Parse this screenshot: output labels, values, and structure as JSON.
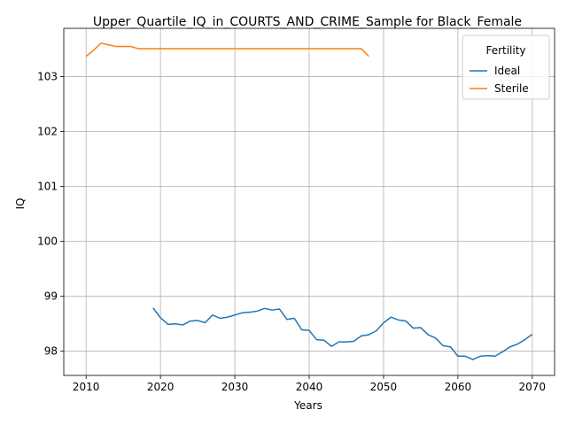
{
  "chart_data": {
    "type": "line",
    "title": "Upper_Quartile_IQ_in_COURTS_AND_CRIME_Sample for Black_Female",
    "xlabel": "Years",
    "ylabel": "IQ",
    "xlim": [
      2007,
      2073
    ],
    "ylim": [
      97.56,
      103.88
    ],
    "xticks": [
      2010,
      2020,
      2030,
      2040,
      2050,
      2060,
      2070
    ],
    "yticks": [
      98,
      99,
      100,
      101,
      102,
      103
    ],
    "grid": true,
    "legend": {
      "title": "Fertility",
      "position": "top-right"
    },
    "series": [
      {
        "name": "Ideal",
        "color": "#1f77b4",
        "x": [
          2019,
          2020,
          2021,
          2022,
          2023,
          2024,
          2025,
          2026,
          2027,
          2028,
          2029,
          2030,
          2031,
          2032,
          2033,
          2034,
          2035,
          2036,
          2037,
          2038,
          2039,
          2040,
          2041,
          2042,
          2043,
          2044,
          2045,
          2046,
          2047,
          2048,
          2049,
          2050,
          2051,
          2052,
          2053,
          2054,
          2055,
          2056,
          2057,
          2058,
          2059,
          2060,
          2061,
          2062,
          2063,
          2064,
          2065,
          2066,
          2067,
          2068,
          2069,
          2070
        ],
        "y": [
          98.79,
          98.61,
          98.49,
          98.5,
          98.48,
          98.55,
          98.56,
          98.52,
          98.66,
          98.6,
          98.62,
          98.66,
          98.7,
          98.71,
          98.73,
          98.78,
          98.75,
          98.77,
          98.58,
          98.6,
          98.39,
          98.38,
          98.21,
          98.2,
          98.09,
          98.17,
          98.17,
          98.18,
          98.28,
          98.3,
          98.37,
          98.52,
          98.62,
          98.57,
          98.55,
          98.42,
          98.43,
          98.3,
          98.24,
          98.1,
          98.08,
          97.91,
          97.91,
          97.85,
          97.91,
          97.92,
          97.91,
          97.99,
          98.08,
          98.13,
          98.21,
          98.31
        ]
      },
      {
        "name": "Sterile",
        "color": "#ff7f0e",
        "x": [
          2010,
          2011,
          2012,
          2013,
          2014,
          2015,
          2016,
          2017,
          2018,
          2019,
          2020,
          2021,
          2022,
          2023,
          2024,
          2025,
          2026,
          2027,
          2028,
          2029,
          2030,
          2031,
          2032,
          2033,
          2034,
          2035,
          2036,
          2037,
          2038,
          2039,
          2040,
          2041,
          2042,
          2043,
          2044,
          2045,
          2046,
          2047,
          2048
        ],
        "y": [
          103.37,
          103.48,
          103.61,
          103.58,
          103.55,
          103.55,
          103.55,
          103.51,
          103.51,
          103.51,
          103.51,
          103.51,
          103.51,
          103.51,
          103.51,
          103.51,
          103.51,
          103.51,
          103.51,
          103.51,
          103.51,
          103.51,
          103.51,
          103.51,
          103.51,
          103.51,
          103.51,
          103.51,
          103.51,
          103.51,
          103.51,
          103.51,
          103.51,
          103.51,
          103.51,
          103.51,
          103.51,
          103.51,
          103.37
        ]
      }
    ]
  }
}
